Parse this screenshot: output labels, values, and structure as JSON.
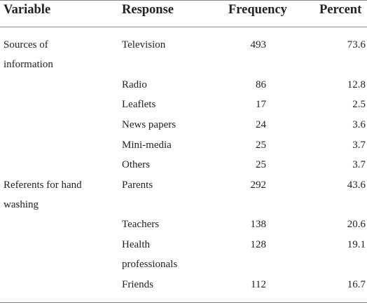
{
  "table": {
    "headers": {
      "variable": "Variable",
      "response": "Response",
      "frequency": "Frequency",
      "percent": "Percent"
    },
    "rows": [
      {
        "variable": [
          "Sources of",
          "information"
        ],
        "response": [
          "Television"
        ],
        "frequency": "493",
        "percent": "73.6"
      },
      {
        "variable": [],
        "response": [
          "Radio"
        ],
        "frequency": "86",
        "percent": "12.8"
      },
      {
        "variable": [],
        "response": [
          "Leaflets"
        ],
        "frequency": "17",
        "percent": "2.5"
      },
      {
        "variable": [],
        "response": [
          "News papers"
        ],
        "frequency": "24",
        "percent": "3.6"
      },
      {
        "variable": [],
        "response": [
          "Mini-media"
        ],
        "frequency": "25",
        "percent": "3.7"
      },
      {
        "variable": [],
        "response": [
          "Others"
        ],
        "frequency": "25",
        "percent": "3.7"
      },
      {
        "variable": [
          "Referents for hand",
          "washing"
        ],
        "response": [
          "Parents"
        ],
        "frequency": "292",
        "percent": "43.6"
      },
      {
        "variable": [],
        "response": [
          "Teachers"
        ],
        "frequency": "138",
        "percent": "20.6"
      },
      {
        "variable": [],
        "response": [
          "Health",
          "professionals"
        ],
        "frequency": "128",
        "percent": "19.1"
      },
      {
        "variable": [],
        "response": [
          "Friends"
        ],
        "frequency": "112",
        "percent": "16.7"
      }
    ]
  }
}
